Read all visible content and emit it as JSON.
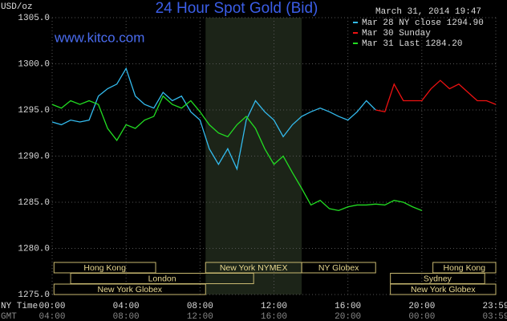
{
  "chart_data": {
    "type": "line",
    "title": "24 Hour Spot Gold (Bid)",
    "watermark": "www.kitco.com",
    "timestamp": "March 31, 2014 19:47",
    "ylabel": "USD/oz",
    "xlabel": "NY Time",
    "x2label": "GMT",
    "ylim": [
      1275,
      1305
    ],
    "yticks": [
      {
        "value": 1275,
        "label": "1275.0"
      },
      {
        "value": 1280,
        "label": "1280.0"
      },
      {
        "value": 1285,
        "label": "1285.0"
      },
      {
        "value": 1290,
        "label": "1290.0"
      },
      {
        "value": 1295,
        "label": "1295.0"
      },
      {
        "value": 1300,
        "label": "1300.0"
      },
      {
        "value": 1305,
        "label": "1305.0"
      }
    ],
    "xlim": [
      0,
      24
    ],
    "xticks": [
      {
        "value": 0,
        "label": "00:00"
      },
      {
        "value": 4,
        "label": "04:00"
      },
      {
        "value": 8,
        "label": "08:00"
      },
      {
        "value": 12,
        "label": "12:00"
      },
      {
        "value": 16,
        "label": "16:00"
      },
      {
        "value": 20,
        "label": "20:00"
      },
      {
        "value": 24,
        "label": "23:59"
      }
    ],
    "x2ticks": [
      {
        "value": 0,
        "label": "04:00"
      },
      {
        "value": 4,
        "label": "08:00"
      },
      {
        "value": 8,
        "label": "12:00"
      },
      {
        "value": 12,
        "label": "16:00"
      },
      {
        "value": 16,
        "label": "20:00"
      },
      {
        "value": 20,
        "label": "00:00"
      },
      {
        "value": 24,
        "label": "03:59"
      }
    ],
    "grid": true,
    "series": [
      {
        "name": "Mar 28 NY close 1294.90",
        "color": "#33bbee",
        "x": [
          0,
          0.5,
          1,
          1.5,
          2,
          2.5,
          3,
          3.5,
          4,
          4.5,
          5,
          5.5,
          6,
          6.5,
          7,
          7.5,
          8,
          8.5,
          9,
          9.5,
          10,
          10.5,
          11,
          11.5,
          12,
          12.5,
          13,
          13.5,
          14,
          14.5,
          15,
          15.5,
          16,
          16.5,
          17,
          17.5
        ],
        "values": [
          1293.7,
          1293.4,
          1293.9,
          1293.7,
          1293.9,
          1296.5,
          1297.3,
          1297.8,
          1299.5,
          1296.5,
          1295.6,
          1295.2,
          1296.9,
          1296.0,
          1296.5,
          1294.8,
          1293.9,
          1290.8,
          1289.1,
          1290.8,
          1288.6,
          1293.9,
          1296.0,
          1294.8,
          1293.9,
          1292.1,
          1293.4,
          1294.3,
          1294.8,
          1295.2,
          1294.8,
          1294.3,
          1293.9,
          1294.8,
          1296.0,
          1295.0
        ]
      },
      {
        "name": "Mar 30 Sunday",
        "color": "#ee1111",
        "x": [
          17.5,
          18,
          18.5,
          19,
          19.5,
          20,
          20.5,
          21,
          21.5,
          22,
          22.5,
          23,
          23.5,
          24
        ],
        "values": [
          1295.0,
          1294.8,
          1297.8,
          1296.0,
          1296.0,
          1296.0,
          1297.3,
          1298.2,
          1297.3,
          1297.8,
          1296.9,
          1296.0,
          1296.0,
          1295.6
        ]
      },
      {
        "name": "Mar 31 Last 1284.20",
        "color": "#22dd22",
        "x": [
          0,
          0.5,
          1,
          1.5,
          2,
          2.5,
          3,
          3.5,
          4,
          4.5,
          5,
          5.5,
          6,
          6.5,
          7,
          7.5,
          8,
          8.5,
          9,
          9.5,
          10,
          10.5,
          11,
          11.5,
          12,
          12.5,
          13,
          13.5,
          14,
          14.5,
          15,
          15.5,
          16,
          16.5,
          17,
          17.5,
          18,
          18.5,
          19,
          19.5,
          20
        ],
        "values": [
          1295.6,
          1295.2,
          1296.0,
          1295.6,
          1296.0,
          1295.6,
          1293.0,
          1291.7,
          1293.4,
          1293.0,
          1293.9,
          1294.3,
          1296.5,
          1295.6,
          1295.2,
          1296.0,
          1294.8,
          1293.4,
          1292.5,
          1292.1,
          1293.4,
          1294.3,
          1293.0,
          1290.8,
          1289.1,
          1290.0,
          1288.2,
          1286.5,
          1284.7,
          1285.2,
          1284.3,
          1284.1,
          1284.5,
          1284.7,
          1284.7,
          1284.8,
          1284.7,
          1285.2,
          1285.0,
          1284.5,
          1284.1
        ]
      }
    ],
    "sessions": [
      {
        "name": "Hong Kong",
        "start": 0.1,
        "end": 5.6
      },
      {
        "name": "Hong Kong",
        "start": 20.6,
        "end": 24
      },
      {
        "name": "London",
        "start": 1,
        "end": 10.9
      },
      {
        "name": "Sydney",
        "start": 18.3,
        "end": 23.4
      },
      {
        "name": "New York Globex",
        "start": 0.1,
        "end": 8.3
      },
      {
        "name": "New York NYMEX",
        "start": 8.3,
        "end": 13.5,
        "shade": true
      },
      {
        "name": "NY Globex",
        "start": 13.5,
        "end": 17.5
      },
      {
        "name": "New York Globex",
        "start": 18.3,
        "end": 24
      }
    ]
  }
}
